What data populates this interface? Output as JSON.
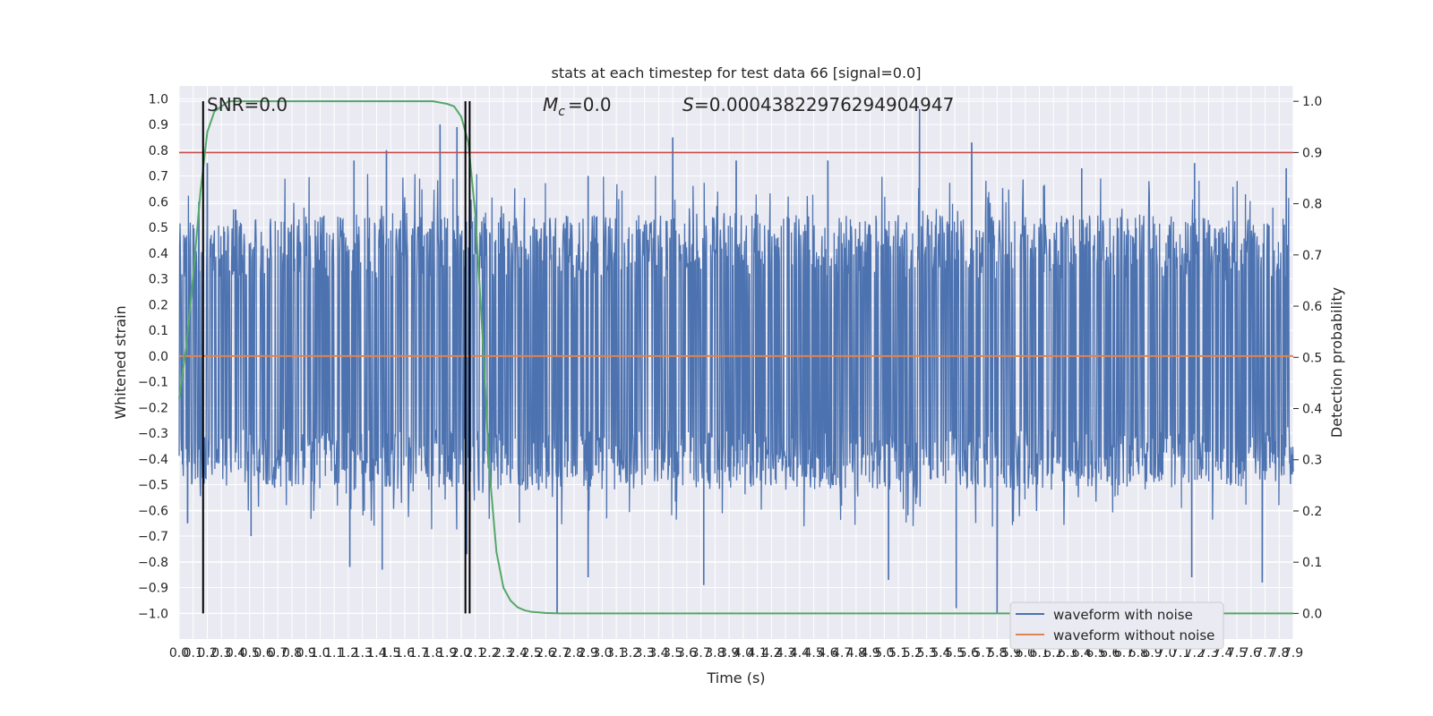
{
  "chart_data": {
    "type": "line",
    "title": "stats at each timestep for test data 66 [signal=0.0]",
    "xlabel": "Time (s)",
    "ylabel": "Whitened strain",
    "y2label": "Detection probability",
    "xlim": [
      0.0,
      7.9
    ],
    "ylim": [
      -1.1,
      1.05
    ],
    "y2lim": [
      -0.05,
      1.03
    ],
    "grid": true,
    "x_tick_labels": [
      "0.0",
      "0.1",
      "0.2",
      "0.3",
      "0.4",
      "0.5",
      "0.6",
      "0.7",
      "0.8",
      "0.9",
      "1.0",
      "1.1",
      "1.2",
      "1.3",
      "1.4",
      "1.5",
      "1.6",
      "1.7",
      "1.8",
      "1.9",
      "2.0",
      "2.1",
      "2.2",
      "2.3",
      "2.4",
      "2.5",
      "2.6",
      "2.7",
      "2.8",
      "2.9",
      "3.0",
      "3.1",
      "3.2",
      "3.3",
      "3.4",
      "3.5",
      "3.6",
      "3.7",
      "3.8",
      "3.9",
      "4.0",
      "4.1",
      "4.2",
      "4.3",
      "4.4",
      "4.5",
      "4.6",
      "4.7",
      "4.8",
      "4.9",
      "5.0",
      "5.1",
      "5.2",
      "5.3",
      "5.4",
      "5.5",
      "5.6",
      "5.7",
      "5.8",
      "5.9",
      "6.0",
      "6.1",
      "6.2",
      "6.3",
      "6.4",
      "6.5",
      "6.6",
      "6.7",
      "6.8",
      "6.9",
      "7.0",
      "7.1",
      "7.2",
      "7.3",
      "7.4",
      "7.5",
      "7.6",
      "7.7",
      "7.8",
      "7.9"
    ],
    "y_tick_labels": [
      "−1.0",
      "−0.9",
      "−0.8",
      "−0.7",
      "−0.6",
      "−0.5",
      "−0.4",
      "−0.3",
      "−0.2",
      "−0.1",
      "0.0",
      "0.1",
      "0.2",
      "0.3",
      "0.4",
      "0.5",
      "0.6",
      "0.7",
      "0.8",
      "0.9",
      "1.0"
    ],
    "y2_tick_labels": [
      "0.0",
      "0.1",
      "0.2",
      "0.3",
      "0.4",
      "0.5",
      "0.6",
      "0.7",
      "0.8",
      "0.9",
      "1.0"
    ],
    "annotations": {
      "snr": "SNR=0.0",
      "mc": "=0.0",
      "s": "=0.00043822976294904947"
    },
    "series": [
      {
        "name": "waveform with noise",
        "color": "#4c72b0",
        "axis": "left",
        "style": "noise",
        "envelope": {
          "x": [
            0.0,
            1.0,
            2.0,
            3.0,
            4.0,
            5.0,
            6.0,
            7.0,
            7.9
          ],
          "typical_max": [
            0.52,
            0.55,
            0.56,
            0.55,
            0.55,
            0.55,
            0.55,
            0.55,
            0.52
          ],
          "typical_min": [
            -0.5,
            -0.52,
            -0.53,
            -0.52,
            -0.52,
            -0.52,
            -0.52,
            -0.52,
            -0.5
          ]
        },
        "peaks": [
          {
            "x": 0.14,
            "y": 0.6
          },
          {
            "x": 0.17,
            "y": 0.88
          },
          {
            "x": 0.2,
            "y": 0.75
          },
          {
            "x": 0.4,
            "y": 0.57
          },
          {
            "x": 1.24,
            "y": 0.76
          },
          {
            "x": 1.47,
            "y": 0.8
          },
          {
            "x": 1.85,
            "y": 0.9
          },
          {
            "x": 1.97,
            "y": 0.89
          },
          {
            "x": 2.06,
            "y": 0.75
          },
          {
            "x": 2.9,
            "y": 0.7
          },
          {
            "x": 3.5,
            "y": 0.85
          },
          {
            "x": 3.95,
            "y": 0.76
          },
          {
            "x": 4.6,
            "y": 0.76
          },
          {
            "x": 5.25,
            "y": 0.96
          },
          {
            "x": 5.62,
            "y": 0.83
          },
          {
            "x": 6.4,
            "y": 0.73
          },
          {
            "x": 7.2,
            "y": 0.75
          },
          {
            "x": 7.85,
            "y": 0.73
          },
          {
            "x": 0.06,
            "y": -0.65
          },
          {
            "x": 0.51,
            "y": -0.7
          },
          {
            "x": 1.21,
            "y": -0.82
          },
          {
            "x": 1.44,
            "y": -0.83
          },
          {
            "x": 2.04,
            "y": -0.77
          },
          {
            "x": 2.68,
            "y": -1.0
          },
          {
            "x": 2.9,
            "y": -0.86
          },
          {
            "x": 3.72,
            "y": -0.89
          },
          {
            "x": 5.03,
            "y": -0.87
          },
          {
            "x": 5.51,
            "y": -0.98
          },
          {
            "x": 5.8,
            "y": -1.0
          },
          {
            "x": 7.18,
            "y": -0.86
          },
          {
            "x": 7.68,
            "y": -0.88
          }
        ]
      },
      {
        "name": "waveform without noise",
        "color": "#dd8452",
        "axis": "left",
        "x": [
          0.0,
          7.9
        ],
        "y": [
          0.0,
          0.0
        ]
      },
      {
        "name": "",
        "color": "#55a868",
        "axis": "right",
        "x": [
          0.0,
          0.05,
          0.1,
          0.15,
          0.2,
          0.25,
          0.3,
          0.35,
          0.4,
          0.45,
          0.5,
          0.6,
          0.8,
          1.0,
          1.5,
          1.8,
          1.9,
          1.95,
          2.0,
          2.05,
          2.1,
          2.15,
          2.2,
          2.25,
          2.3,
          2.35,
          2.4,
          2.45,
          2.5,
          2.55,
          2.6,
          2.7,
          2.8,
          3.0,
          4.0,
          5.0,
          6.0,
          7.0,
          7.9
        ],
        "y": [
          0.42,
          0.52,
          0.66,
          0.82,
          0.94,
          0.98,
          0.99,
          1.0,
          1.0,
          1.0,
          1.0,
          1.0,
          1.0,
          1.0,
          1.0,
          1.0,
          0.995,
          0.99,
          0.97,
          0.92,
          0.78,
          0.55,
          0.28,
          0.12,
          0.05,
          0.025,
          0.012,
          0.006,
          0.003,
          0.002,
          0.001,
          0.0,
          0.0,
          0.0,
          0.0,
          0.0,
          0.0,
          0.0,
          0.0
        ]
      }
    ],
    "hlines": [
      {
        "axis": "right",
        "y": 0.9,
        "color": "#c44e52"
      }
    ],
    "vlines": [
      {
        "x": 0.17,
        "color": "#000000"
      },
      {
        "x": 2.03,
        "color": "#000000"
      },
      {
        "x": 2.06,
        "color": "#000000"
      }
    ],
    "legend": {
      "placement": "lower-right",
      "entries": [
        {
          "label": "waveform with noise",
          "color": "#4c72b0"
        },
        {
          "label": "waveform without noise",
          "color": "#dd8452"
        }
      ]
    },
    "colors": {
      "plot_background": "#eaeaf2",
      "grid": "#ffffff",
      "text": "#262626"
    }
  }
}
